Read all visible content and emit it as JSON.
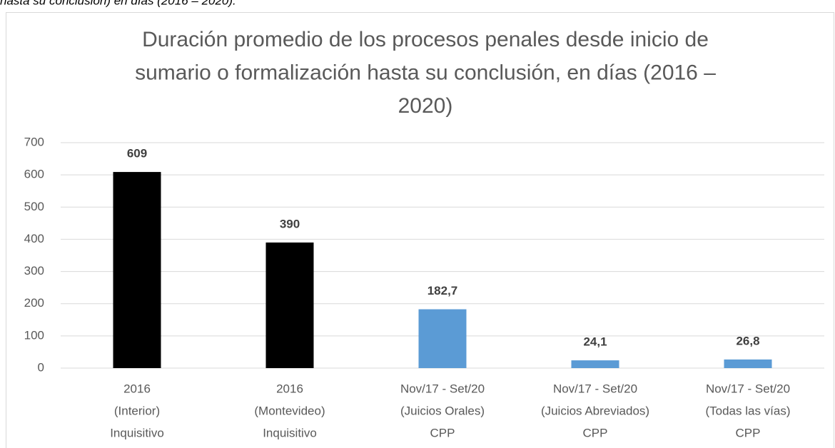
{
  "caption": "hasta su conclusión) en días (2016 – 2020).",
  "chart_data": {
    "type": "bar",
    "title": [
      "Duración promedio de los procesos penales desde inicio de",
      "sumario o formalización hasta su conclusión, en días (2016 –",
      "2020)"
    ],
    "categories": [
      [
        "2016",
        "(Interior)",
        "Inquisitivo"
      ],
      [
        "2016",
        "(Montevideo)",
        "Inquisitivo"
      ],
      [
        "Nov/17 - Set/20",
        "(Juicios Orales)",
        "CPP"
      ],
      [
        "Nov/17 - Set/20",
        "(Juicios Abreviados)",
        "CPP"
      ],
      [
        "Nov/17 - Set/20",
        "(Todas las vías)",
        "CPP"
      ]
    ],
    "values": [
      609,
      390,
      182.7,
      24.1,
      26.8
    ],
    "value_labels": [
      "609",
      "390",
      "182,7",
      "24,1",
      "26,8"
    ],
    "colors": [
      "#000000",
      "#000000",
      "#5b9bd5",
      "#5b9bd5",
      "#5b9bd5"
    ],
    "ylim": [
      0,
      700
    ],
    "yticks": [
      0,
      100,
      200,
      300,
      400,
      500,
      600,
      700
    ],
    "grid": true
  }
}
